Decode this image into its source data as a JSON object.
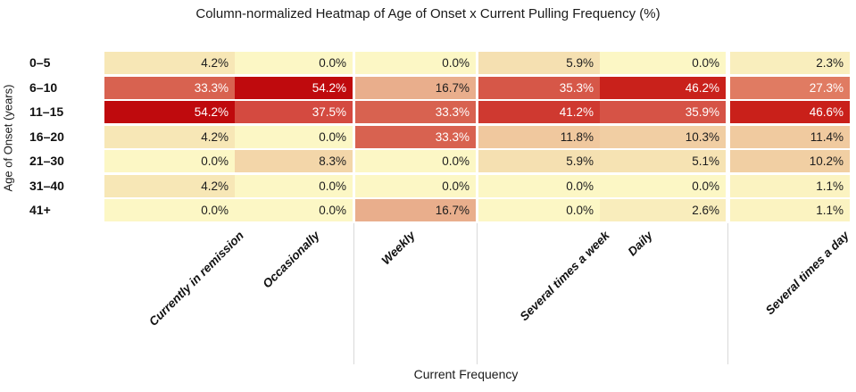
{
  "chart_data": {
    "type": "heatmap",
    "title": "Column-normalized Heatmap of Age of Onset x Current Pulling Frequency (%)",
    "xlabel": "Current Frequency",
    "ylabel": "Age of Onset (years)",
    "categories": [
      "Currently in remission",
      "Occasionally",
      "Weekly",
      "Several times a week",
      "Daily",
      "Several times a day"
    ],
    "rows": [
      "0–5",
      "6–10",
      "11–15",
      "16–20",
      "21–30",
      "31–40",
      "41+"
    ],
    "values_percent": [
      [
        4.2,
        0.0,
        0.0,
        5.9,
        0.0,
        2.3
      ],
      [
        33.3,
        54.2,
        16.7,
        35.3,
        46.2,
        27.3
      ],
      [
        54.2,
        37.5,
        33.3,
        41.2,
        35.9,
        46.6
      ],
      [
        4.2,
        0.0,
        33.3,
        11.8,
        10.3,
        11.4
      ],
      [
        0.0,
        8.3,
        0.0,
        5.9,
        5.1,
        10.2
      ],
      [
        4.2,
        0.0,
        0.0,
        0.0,
        0.0,
        1.1
      ],
      [
        0.0,
        0.0,
        16.7,
        0.0,
        2.6,
        1.1
      ]
    ],
    "value_suffix": "%",
    "value_decimals": 1,
    "grid": "partial-vertical-separators",
    "legend": "none",
    "color_scale": {
      "max_value": 54.2,
      "stops": [
        [
          0.0,
          "#FCF7C5"
        ],
        [
          0.077,
          "#F7E7B6"
        ],
        [
          0.218,
          "#F0C89E"
        ],
        [
          0.308,
          "#E9AE8C"
        ],
        [
          0.504,
          "#E07B62"
        ],
        [
          0.615,
          "#D86250"
        ],
        [
          0.692,
          "#D44A40"
        ],
        [
          0.853,
          "#C9211B"
        ],
        [
          1.0,
          "#BF0A0D"
        ]
      ],
      "light_text_threshold": 0.5,
      "light_text_color": "#ffffff",
      "dark_text_color": "#1d1d1d"
    }
  }
}
